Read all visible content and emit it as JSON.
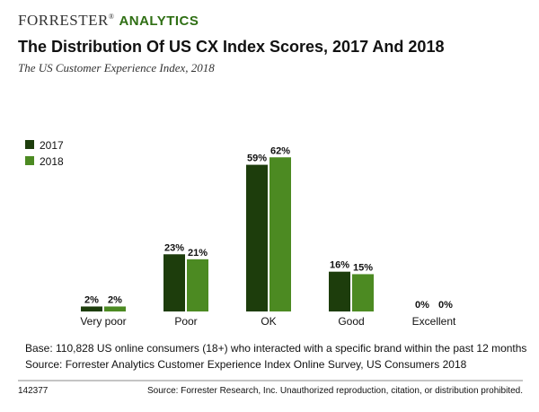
{
  "brand": {
    "name": "FORRESTER",
    "mark": "®",
    "product": "ANALYTICS"
  },
  "chart_data": {
    "type": "bar",
    "title": "The Distribution Of US CX Index Scores, 2017 And 2018",
    "subtitle": "The US Customer Experience Index, 2018",
    "categories": [
      "Very poor",
      "Poor",
      "OK",
      "Good",
      "Excellent"
    ],
    "series": [
      {
        "name": "2017",
        "color": "#1d3d0c",
        "values": [
          2,
          23,
          59,
          16,
          0
        ],
        "value_labels": [
          "2%",
          "23%",
          "59%",
          "16%",
          "0%"
        ]
      },
      {
        "name": "2018",
        "color": "#4c8a22",
        "values": [
          2,
          21,
          62,
          15,
          0
        ],
        "value_labels": [
          "2%",
          "21%",
          "62%",
          "15%",
          "0%"
        ]
      }
    ],
    "legend": "upper left",
    "notes": [
      "Base: 110,828 US online consumers (18+) who interacted with a specific brand within the past 12 months",
      "Source: Forrester Analytics Customer Experience Index Online Survey, US Consumers 2018"
    ]
  },
  "footer": {
    "id": "142377",
    "source": "Source: Forrester Research, Inc. Unauthorized reproduction, citation, or distribution prohibited."
  }
}
